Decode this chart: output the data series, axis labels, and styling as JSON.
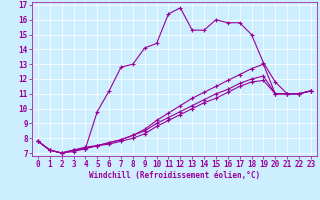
{
  "xlabel": "Windchill (Refroidissement éolien,°C)",
  "bg_color": "#cceeff",
  "line_color": "#990099",
  "xlim": [
    -0.5,
    23.5
  ],
  "ylim": [
    6.8,
    17.2
  ],
  "xticks": [
    0,
    1,
    2,
    3,
    4,
    5,
    6,
    7,
    8,
    9,
    10,
    11,
    12,
    13,
    14,
    15,
    16,
    17,
    18,
    19,
    20,
    21,
    22,
    23
  ],
  "yticks": [
    7,
    8,
    9,
    10,
    11,
    12,
    13,
    14,
    15,
    16,
    17
  ],
  "line1_x": [
    0,
    1,
    2,
    3,
    4,
    5,
    6,
    7,
    8,
    9,
    10,
    11,
    12,
    13,
    14,
    15,
    16,
    17,
    18,
    19,
    20,
    21,
    22,
    23
  ],
  "line1_y": [
    7.8,
    7.2,
    7.0,
    7.1,
    7.3,
    9.8,
    11.2,
    12.8,
    13.0,
    14.1,
    14.4,
    16.4,
    16.8,
    15.3,
    15.3,
    16.0,
    15.8,
    15.8,
    15.0,
    13.1,
    11.8,
    11.0,
    11.0,
    11.2
  ],
  "line2_x": [
    0,
    1,
    2,
    3,
    4,
    5,
    6,
    7,
    8,
    9,
    10,
    11,
    12,
    13,
    14,
    15,
    16,
    17,
    18,
    19,
    20,
    21,
    22,
    23
  ],
  "line2_y": [
    7.8,
    7.2,
    7.0,
    7.2,
    7.3,
    7.5,
    7.6,
    7.8,
    8.0,
    8.3,
    8.8,
    9.2,
    9.6,
    10.0,
    10.4,
    10.7,
    11.1,
    11.5,
    11.8,
    11.9,
    11.0,
    11.0,
    11.0,
    11.2
  ],
  "line3_x": [
    0,
    1,
    2,
    3,
    4,
    5,
    6,
    7,
    8,
    9,
    10,
    11,
    12,
    13,
    14,
    15,
    16,
    17,
    18,
    19,
    20,
    21,
    22,
    23
  ],
  "line3_y": [
    7.8,
    7.2,
    7.0,
    7.2,
    7.3,
    7.5,
    7.7,
    7.9,
    8.2,
    8.5,
    9.0,
    9.4,
    9.8,
    10.2,
    10.6,
    11.0,
    11.3,
    11.7,
    12.0,
    12.2,
    11.0,
    11.0,
    11.0,
    11.2
  ],
  "line4_x": [
    0,
    1,
    2,
    3,
    4,
    5,
    6,
    7,
    8,
    9,
    10,
    11,
    12,
    13,
    14,
    15,
    16,
    17,
    18,
    19,
    20,
    21,
    22,
    23
  ],
  "line4_y": [
    7.8,
    7.2,
    7.0,
    7.2,
    7.4,
    7.5,
    7.7,
    7.9,
    8.2,
    8.6,
    9.2,
    9.7,
    10.2,
    10.7,
    11.1,
    11.5,
    11.9,
    12.3,
    12.7,
    13.0,
    11.0,
    11.0,
    11.0,
    11.2
  ],
  "tick_fontsize": 5.5,
  "xlabel_fontsize": 5.5
}
